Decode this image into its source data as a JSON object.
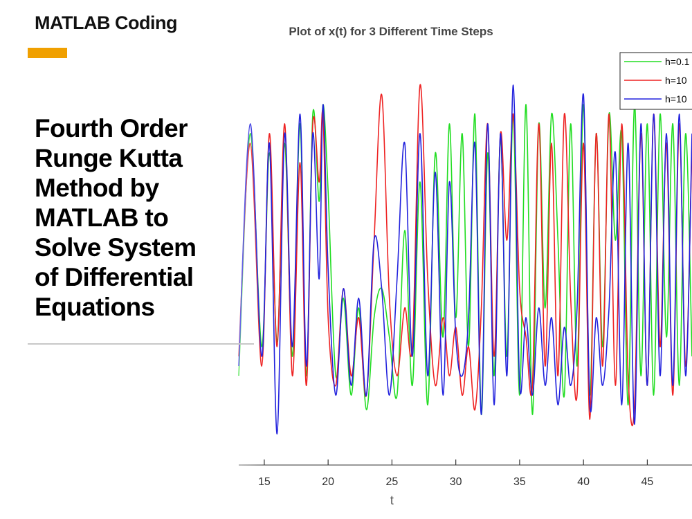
{
  "header": {
    "brand": "MATLAB Coding",
    "accent_color": "#f0a000"
  },
  "headline": {
    "lines": [
      "Fourth Order",
      "Runge Kutta",
      "Method by",
      "MATLAB to",
      "Solve System",
      "of Differential",
      "Equations"
    ]
  },
  "chart_data": {
    "type": "line",
    "title": "Plot of x(t) for 3 Different Time Steps",
    "xlabel": "t",
    "ylabel": "",
    "xlim": [
      13,
      48.5
    ],
    "ylim": [
      -20,
      20
    ],
    "x_ticks": [
      15,
      20,
      25,
      30,
      35,
      40,
      45
    ],
    "grid": false,
    "legend_position": "top-right",
    "series": [
      {
        "name": "h=0.1",
        "color": "#22dd22",
        "x": [
          13.0,
          13.9,
          14.8,
          15.4,
          16.0,
          16.6,
          17.2,
          17.8,
          18.3,
          18.8,
          19.3,
          19.6,
          20.0,
          20.6,
          21.2,
          21.8,
          22.4,
          23.0,
          23.6,
          24.2,
          24.8,
          25.4,
          26.0,
          26.6,
          27.2,
          27.8,
          28.4,
          29.0,
          29.5,
          30.0,
          30.5,
          31.0,
          31.5,
          32.0,
          32.5,
          33.0,
          33.5,
          34.0,
          34.5,
          35.0,
          35.5,
          36.0,
          36.5,
          37.0,
          37.5,
          38.0,
          38.5,
          39.0,
          39.5,
          40.0,
          40.5,
          41.0,
          41.5,
          42.0,
          42.5,
          43.0,
          43.5,
          44.0,
          44.5,
          45.0,
          45.5,
          46.0,
          46.5,
          47.0,
          47.5,
          48.0,
          48.5
        ],
        "y": [
          -12.0,
          13.0,
          -9.0,
          11.0,
          -8.5,
          12.0,
          -10.0,
          14.0,
          -12.0,
          15.0,
          6.0,
          16.0,
          7.0,
          -12.0,
          -4.0,
          -14.0,
          -5.0,
          -15.5,
          -6.0,
          -3.0,
          -8.0,
          -14.0,
          3.0,
          -13.0,
          8.0,
          -15.0,
          11.0,
          -8.0,
          14.0,
          -6.0,
          13.0,
          -9.0,
          15.0,
          -16.0,
          11.0,
          -12.0,
          12.5,
          -10.0,
          15.0,
          -14.0,
          16.0,
          -16.0,
          14.0,
          -5.0,
          15.0,
          2.0,
          -14.0,
          14.0,
          -11.0,
          16.0,
          -14.0,
          13.0,
          -9.0,
          15.0,
          2.0,
          13.0,
          -15.0,
          16.0,
          -12.0,
          14.0,
          -14.0,
          15.0,
          -8.0,
          14.0,
          -13.0,
          13.0,
          -10.0
        ]
      },
      {
        "name": "h=10",
        "color": "#ee2222",
        "x": [
          13.0,
          13.9,
          14.8,
          15.4,
          16.0,
          16.6,
          17.2,
          17.8,
          18.3,
          18.8,
          19.3,
          19.6,
          20.0,
          20.6,
          21.2,
          21.8,
          22.4,
          23.0,
          23.6,
          24.2,
          24.8,
          25.4,
          26.0,
          26.6,
          27.2,
          27.8,
          28.4,
          29.0,
          29.5,
          30.0,
          30.5,
          31.0,
          31.5,
          32.0,
          32.5,
          33.0,
          33.5,
          34.0,
          34.5,
          35.0,
          35.5,
          36.0,
          36.5,
          37.0,
          37.5,
          38.0,
          38.5,
          39.0,
          39.5,
          40.0,
          40.5,
          41.0,
          41.5,
          42.0,
          42.5,
          43.0,
          43.5,
          44.0,
          44.5,
          45.0,
          45.5,
          46.0,
          46.5,
          47.0,
          47.5,
          48.0,
          48.5
        ],
        "y": [
          -10.0,
          12.0,
          -11.0,
          13.0,
          -9.0,
          14.0,
          -12.0,
          10.0,
          -13.0,
          14.0,
          8.0,
          15.0,
          -6.0,
          -13.0,
          -3.0,
          -12.0,
          -6.0,
          -14.0,
          2.0,
          17.0,
          -4.0,
          -12.0,
          -5.0,
          -9.0,
          18.0,
          -2.0,
          -13.0,
          -6.0,
          -12.0,
          -7.0,
          -14.0,
          -9.0,
          -15.5,
          -5.0,
          14.0,
          -10.0,
          13.0,
          2.0,
          15.0,
          -3.0,
          -8.0,
          -13.0,
          14.0,
          -11.0,
          12.0,
          -12.0,
          15.0,
          -4.0,
          -14.0,
          12.0,
          -16.5,
          13.0,
          -11.0,
          15.0,
          -13.0,
          14.0,
          -12.0,
          -15.0,
          13.0,
          -13.0,
          15.0,
          -9.0,
          12.0,
          -14.0,
          14.0,
          -11.0,
          12.0
        ]
      },
      {
        "name": "h=10",
        "color": "#2222dd",
        "x": [
          13.0,
          13.9,
          14.8,
          15.4,
          16.0,
          16.6,
          17.2,
          17.8,
          18.3,
          18.8,
          19.3,
          19.6,
          20.0,
          20.6,
          21.2,
          21.8,
          22.4,
          23.0,
          23.6,
          24.2,
          24.8,
          25.4,
          26.0,
          26.6,
          27.2,
          27.8,
          28.4,
          29.0,
          29.5,
          30.0,
          30.5,
          31.0,
          31.5,
          32.0,
          32.5,
          33.0,
          33.5,
          34.0,
          34.5,
          35.0,
          35.5,
          36.0,
          36.5,
          37.0,
          37.5,
          38.0,
          38.5,
          39.0,
          39.5,
          40.0,
          40.5,
          41.0,
          41.5,
          42.0,
          42.5,
          43.0,
          43.5,
          44.0,
          44.5,
          45.0,
          45.5,
          46.0,
          46.5,
          47.0,
          47.5,
          48.0,
          48.5
        ],
        "y": [
          -11.0,
          14.0,
          -10.0,
          12.0,
          -18.0,
          13.0,
          -9.0,
          15.0,
          -11.0,
          13.0,
          -2.0,
          16.0,
          -1.0,
          -14.0,
          -3.0,
          -13.0,
          -4.0,
          -14.0,
          2.0,
          -3.0,
          -14.0,
          -2.0,
          12.0,
          -10.0,
          13.0,
          -12.0,
          9.0,
          -14.0,
          8.0,
          -8.0,
          -12.0,
          -6.0,
          12.0,
          -16.0,
          14.0,
          -15.0,
          13.0,
          -12.0,
          18.0,
          -13.0,
          -6.0,
          -14.0,
          -5.0,
          -13.0,
          -6.0,
          -15.0,
          -7.0,
          -13.0,
          -5.0,
          17.0,
          -15.0,
          -6.0,
          -13.0,
          -5.0,
          11.0,
          -15.0,
          12.0,
          -17.0,
          14.0,
          -13.0,
          15.0,
          -12.0,
          13.0,
          -13.0,
          15.0,
          -12.0,
          13.0
        ]
      }
    ]
  }
}
